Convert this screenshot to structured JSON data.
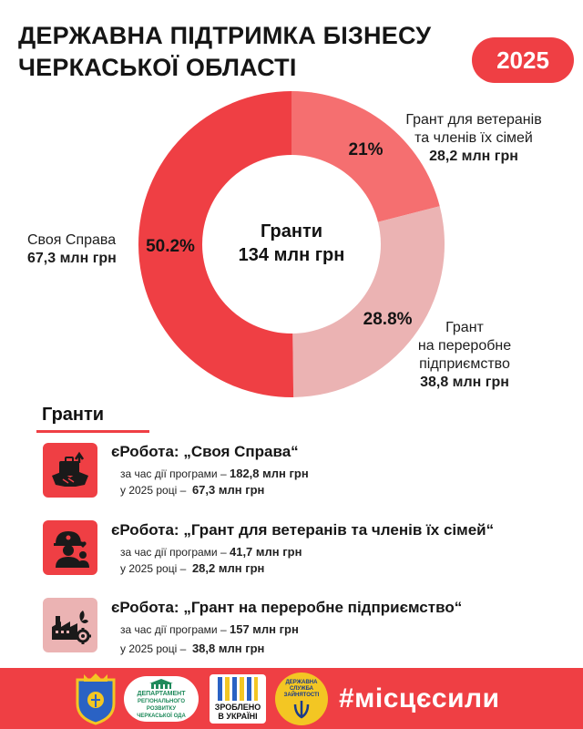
{
  "header": {
    "title_line1": "ДЕРЖАВНА ПІДТРИМКА БІЗНЕСУ",
    "title_line2": "ЧЕРКАСЬКОЇ ОБЛАСТІ",
    "year": "2025"
  },
  "chart_data": {
    "type": "pie",
    "center_title": "Гранти",
    "center_value": "134 млн грн",
    "slices": [
      {
        "name_lines": [
          "Грант для ветеранів",
          "та членів їх сімей"
        ],
        "amount": "28,2 млн грн",
        "percent_label": "21%",
        "value": 21,
        "color": "#f56f70"
      },
      {
        "name_lines": [
          "Грант",
          "на переробне",
          "підприємство"
        ],
        "amount": "38,8 млн грн",
        "percent_label": "28.8%",
        "value": 28.8,
        "color": "#ebb3b3"
      },
      {
        "name_lines": [
          "Своя Справа"
        ],
        "amount": "67,3 млн грн",
        "percent_label": "50.2%",
        "value": 50.2,
        "color": "#ef3f44"
      }
    ]
  },
  "grants": {
    "heading": "Гранти",
    "items": [
      {
        "title": "єРобота: „Своя Справа“",
        "period_label": "за час дії програми –",
        "period_value": "182,8 млн грн",
        "year_label": "у 2025 році –",
        "year_value": "67,3 млн грн",
        "icon": "business-handshake-icon"
      },
      {
        "title": "єРобота: „Грант для ветеранів та членів їх сімей“",
        "period_label": "за час дії програми –",
        "period_value": "41,7 млн грн",
        "year_label": "у 2025 році –",
        "year_value": "28,2 млн грн",
        "icon": "veteran-family-icon"
      },
      {
        "title": "єРобота: „Грант на переробне підприємство“",
        "period_label": "за час дії програми –",
        "period_value": "157 млн грн",
        "year_label": "у 2025 році –",
        "year_value": "38,8 млн грн",
        "icon": "factory-gear-icon"
      }
    ]
  },
  "footer": {
    "dept_line1": "ДЕПАРТАМЕНТ",
    "dept_line2": "РЕГІОНАЛЬНОГО РОЗВИТКУ",
    "dept_line3": "ЧЕРКАСЬКОЇ ОДА",
    "made_line1": "ЗРОБЛЕНО",
    "made_line2": "В УКРАЇНІ",
    "employment_service": "ДЕРЖАВНА СЛУЖБА ЗАЙНЯТОСТІ",
    "hashtag": "#місцєсили"
  }
}
